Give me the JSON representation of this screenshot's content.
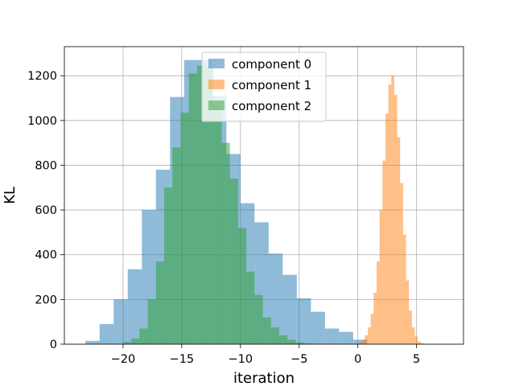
{
  "chart_data": {
    "type": "bar",
    "title": "",
    "xlabel": "iteration",
    "ylabel": "KL",
    "xlim": [
      -25,
      9
    ],
    "ylim": [
      0,
      1330
    ],
    "x_ticks": [
      -20,
      -15,
      -10,
      -5,
      0,
      5
    ],
    "x_tick_labels": [
      "−20",
      "−15",
      "−10",
      "−5",
      "0",
      "5"
    ],
    "y_ticks": [
      0,
      200,
      400,
      600,
      800,
      1000,
      1200
    ],
    "y_tick_labels": [
      "0",
      "200",
      "400",
      "600",
      "800",
      "1000",
      "1200"
    ],
    "grid": true,
    "legend_position": "upper-center",
    "alpha": 0.5,
    "series": [
      {
        "name": "component 0",
        "color": "#1f77b4",
        "bin_edges": [
          -23.2,
          -22.0,
          -20.8,
          -19.6,
          -18.4,
          -17.2,
          -16.0,
          -14.8,
          -13.6,
          -12.4,
          -11.2,
          -10.0,
          -8.8,
          -7.6,
          -6.4,
          -5.2,
          -4.0,
          -2.8,
          -1.6,
          -0.4,
          0.8
        ],
        "counts": [
          15,
          90,
          200,
          335,
          600,
          780,
          1105,
          1270,
          1270,
          1110,
          850,
          630,
          545,
          405,
          310,
          205,
          145,
          70,
          55,
          20
        ]
      },
      {
        "name": "component 1",
        "color": "#ff7f0e",
        "bin_edges": [
          0.1,
          0.35,
          0.6,
          0.85,
          1.1,
          1.35,
          1.6,
          1.85,
          2.1,
          2.35,
          2.6,
          2.85,
          3.1,
          3.35,
          3.6,
          3.85,
          4.1,
          4.35,
          4.6,
          4.85,
          5.1,
          5.35,
          5.6
        ],
        "counts": [
          8,
          20,
          40,
          75,
          135,
          230,
          370,
          600,
          820,
          1030,
          1160,
          1200,
          1115,
          925,
          720,
          490,
          285,
          150,
          75,
          35,
          12,
          5
        ]
      },
      {
        "name": "component 2",
        "color": "#2ca02c",
        "bin_edges": [
          -20.0,
          -19.3,
          -18.6,
          -17.9,
          -17.2,
          -16.5,
          -15.8,
          -15.1,
          -14.4,
          -13.7,
          -13.0,
          -12.3,
          -11.6,
          -10.9,
          -10.2,
          -9.5,
          -8.8,
          -8.1,
          -7.4,
          -6.7,
          -6.0,
          -5.3,
          -4.6,
          -4.0
        ],
        "counts": [
          10,
          25,
          70,
          200,
          370,
          700,
          880,
          1035,
          1210,
          1245,
          1240,
          1075,
          900,
          740,
          520,
          325,
          220,
          120,
          75,
          40,
          20,
          8,
          3
        ]
      }
    ]
  }
}
